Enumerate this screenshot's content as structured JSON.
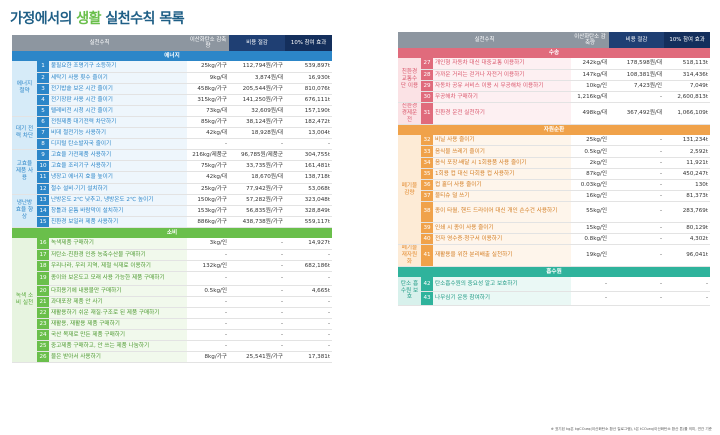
{
  "title": {
    "part1": "가정에서의",
    "accent": "생활",
    "part2": "실천수칙 목록"
  },
  "headers": {
    "action": "실천수칙",
    "reduction": "이산화탄소 감축량",
    "cost": "비용 절감",
    "effect": "10% 참여 효과"
  },
  "left": {
    "energy_label": "에너지",
    "consume_label": "소비",
    "categories": {
      "elec": "에너지 절약",
      "standby": "대기 전력 차단",
      "efficiency": "고효율 제품 사용",
      "heating": "냉난방 효율 향상",
      "green": "녹색 소비 실천"
    },
    "energy_rows": [
      {
        "n": "1",
        "action": "불필요한 조명기구 소등하기",
        "reduction": "25kg/가구",
        "cost": "112,794원/가구",
        "effect": "539,897t"
      },
      {
        "n": "2",
        "action": "세탁기 사용 횟수 줄이기",
        "reduction": "9kg/대",
        "cost": "3,874원/대",
        "effect": "16,930t"
      },
      {
        "n": "3",
        "action": "전기밥솥 보온 시간 줄이기",
        "reduction": "458kg/가구",
        "cost": "205,544원/가구",
        "effect": "810,076t"
      },
      {
        "n": "4",
        "action": "전기장판 사용 시간 줄이기",
        "reduction": "315kg/가구",
        "cost": "141,250원/가구",
        "effect": "676,111t"
      },
      {
        "n": "5",
        "action": "텔레비전 시청 시간 줄이기",
        "reduction": "73kg/대",
        "cost": "32,609원/대",
        "effect": "157,190t"
      },
      {
        "n": "6",
        "action": "전원제품 대기전력 차단하기",
        "reduction": "85kg/가구",
        "cost": "38,124원/가구",
        "effect": "182,472t"
      },
      {
        "n": "7",
        "action": "비데 절전기능 사용하기",
        "reduction": "42kg/대",
        "cost": "18,928원/대",
        "effect": "13,004t"
      },
      {
        "n": "8",
        "action": "디지털 탄소발자국 줄이기",
        "reduction": "-",
        "cost": "-",
        "effect": "-"
      },
      {
        "n": "9",
        "action": "고효율 가전제품 사용하기",
        "reduction": "216kg/제품군",
        "cost": "96,785원/제품군",
        "effect": "304,755t"
      },
      {
        "n": "10",
        "action": "고효율 조리기구 사용하기",
        "reduction": "75kg/가구",
        "cost": "33,735원/가구",
        "effect": "161,481t"
      },
      {
        "n": "11",
        "action": "냉장고 에너지 효율 높이기",
        "reduction": "42kg/대",
        "cost": "18,670원/대",
        "effect": "138,718t"
      },
      {
        "n": "12",
        "action": "절수 설비·기기 설치하기",
        "reduction": "25kg/가구",
        "cost": "77,942원/가구",
        "effect": "53,068t"
      },
      {
        "n": "13",
        "action": "난방온도 2℃ 낮추고, 냉방온도 2℃ 높이기",
        "reduction": "150kg/가구",
        "cost": "57,282원/가구",
        "effect": "323,048t"
      },
      {
        "n": "14",
        "action": "창틀과 문틈 바람막이 설치하기",
        "reduction": "153kg/가구",
        "cost": "56,835원/가구",
        "effect": "328,849t"
      },
      {
        "n": "15",
        "action": "친환경 보일러 제품 사용하기",
        "reduction": "886kg/가구",
        "cost": "438,738원/가구",
        "effect": "559,117t"
      }
    ],
    "consume_rows": [
      {
        "n": "16",
        "action": "녹색제품 구매하기",
        "reduction": "3kg/인",
        "cost": "-",
        "effect": "14,927t"
      },
      {
        "n": "17",
        "action": "저탄소·친환경 인증 농축수산물 구매하기",
        "reduction": "-",
        "cost": "-",
        "effect": "-"
      },
      {
        "n": "18",
        "action": "우리나라, 우리 지역, 제철 식재료 이용하기",
        "reduction": "132kg/인",
        "cost": "-",
        "effect": "682,186t"
      },
      {
        "n": "19",
        "action": "종이와 보온도고 모래 사용 가능한 제품 구매하기",
        "reduction": "-",
        "cost": "-",
        "effect": "-"
      },
      {
        "n": "20",
        "action": "다회용기에 내용물만 구매하기",
        "reduction": "0.5kg/인",
        "cost": "-",
        "effect": "4,665t"
      },
      {
        "n": "21",
        "action": "과대포장 제품 안 사기",
        "reduction": "-",
        "cost": "-",
        "effect": "-"
      },
      {
        "n": "22",
        "action": "재활용하기 쉬운 재질·구조로 된 제품 구매하기",
        "reduction": "-",
        "cost": "-",
        "effect": "-"
      },
      {
        "n": "23",
        "action": "재활용, 재활용 제품 구매하기",
        "reduction": "-",
        "cost": "-",
        "effect": "-"
      },
      {
        "n": "24",
        "action": "국산 목재로 만든 제품 구매하기",
        "reduction": "-",
        "cost": "-",
        "effect": "-"
      },
      {
        "n": "25",
        "action": "중고제품 구매하고, 안 쓰는 제품 나눔하기",
        "reduction": "-",
        "cost": "-",
        "effect": "-"
      },
      {
        "n": "26",
        "action": "물은 받아서 사용하기",
        "reduction": "8kg/가구",
        "cost": "25,541원/가구",
        "effect": "17,381t"
      }
    ]
  },
  "right": {
    "transport_label": "수송",
    "resource_label": "자원순환",
    "absorb_label": "흡수원",
    "categories": {
      "eco_transport": "친환경 교통수단 이용",
      "eco_driving": "친환경 경제운전",
      "waste_reduce": "폐기물 감량",
      "recycle": "폐기물 재자원화",
      "carbon_sink": "탄소 흡수원 보호"
    },
    "transport_rows": [
      {
        "n": "27",
        "action": "개인형 자동차 대신 대중교통 이용하기",
        "reduction": "242kg/대",
        "cost": "178,598원/대",
        "effect": "518,113t"
      },
      {
        "n": "28",
        "action": "가까운 거리는 걷거나 자전거 이용하기",
        "reduction": "147kg/대",
        "cost": "108,381원/대",
        "effect": "314,436t"
      },
      {
        "n": "29",
        "action": "자동차 공유 서비스 이용 시 무공해차 이용하기",
        "reduction": "10kg/인",
        "cost": "7,423원/인",
        "effect": "7,049t"
      },
      {
        "n": "30",
        "action": "무공해차 구매하기",
        "reduction": "1,216kg/대",
        "cost": "-",
        "effect": "2,600,813t"
      },
      {
        "n": "31",
        "action": "친환경 운전 실천하기",
        "reduction": "498kg/대",
        "cost": "367,492원/대",
        "effect": "1,066,109t"
      }
    ],
    "resource_rows": [
      {
        "n": "32",
        "action": "비닐 사용 줄이기",
        "reduction": "25kg/인",
        "cost": "-",
        "effect": "131,234t"
      },
      {
        "n": "33",
        "action": "음식물 쓰레기 줄이기",
        "reduction": "0.5kg/인",
        "cost": "-",
        "effect": "2,592t"
      },
      {
        "n": "34",
        "action": "음식 포장·배달 시 1회용품 사용 줄이기",
        "reduction": "2kg/인",
        "cost": "-",
        "effect": "11,921t"
      },
      {
        "n": "35",
        "action": "1회용 컵 대신 다회용 컵 사용하기",
        "reduction": "87kg/인",
        "cost": "-",
        "effect": "450,247t"
      },
      {
        "n": "36",
        "action": "컵 홀더 사용 줄이기",
        "reduction": "0.03kg/인",
        "cost": "-",
        "effect": "130t"
      },
      {
        "n": "37",
        "action": "물티슈 덜 쓰기",
        "reduction": "16kg/인",
        "cost": "-",
        "effect": "81,373t"
      },
      {
        "n": "38",
        "action": "종이 타월, 핸드 드라이어 대신 개인 손수건 사용하기",
        "reduction": "55kg/인",
        "cost": "-",
        "effect": "283,769t"
      },
      {
        "n": "39",
        "action": "인쇄 시 종이 사용 줄이기",
        "reduction": "15kg/인",
        "cost": "-",
        "effect": "80,129t"
      },
      {
        "n": "40",
        "action": "전자 영수증·청구서 이용하기",
        "reduction": "0.8kg/인",
        "cost": "-",
        "effect": "4,302t"
      },
      {
        "n": "41",
        "action": "재활용을 위한 분리배출 실천하기",
        "reduction": "19kg/인",
        "cost": "-",
        "effect": "96,041t"
      }
    ],
    "absorb_rows": [
      {
        "n": "42",
        "action": "탄소흡수원의 중요성 알고 보호하기",
        "reduction": "-",
        "cost": "-",
        "effect": "-"
      },
      {
        "n": "43",
        "action": "나무심기 운동 참여하기",
        "reduction": "-",
        "cost": "-",
        "effect": "-"
      }
    ]
  },
  "footnote": "※ 표기된 kg은 kgCO₂eq(이산화탄소 환산 킬로그램), t은 tCO₂eq(이산화탄소 환산 톤)를 의미, 연간 기준"
}
